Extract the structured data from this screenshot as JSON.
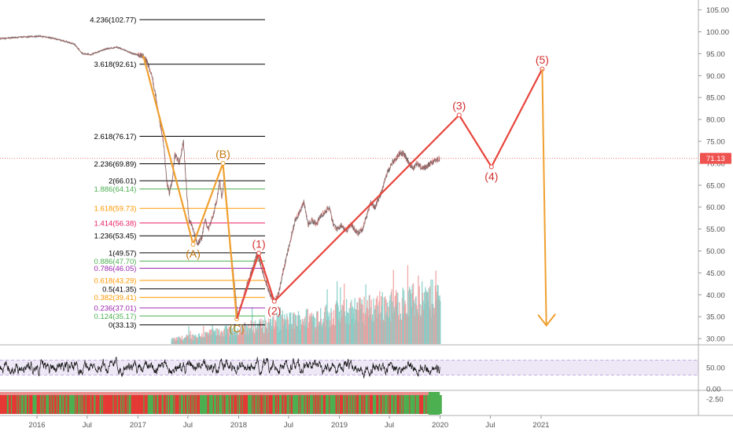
{
  "chart_data": {
    "type": "line",
    "title": "",
    "main_panel": {
      "y_axis": {
        "side": "right",
        "scale": "linear",
        "range": [
          28.5,
          107
        ],
        "ticks": [
          "105.00",
          "100.00",
          "95.00",
          "90.00",
          "85.00",
          "80.00",
          "75.00",
          "70.00",
          "65.00",
          "60.00",
          "55.00",
          "50.00",
          "45.00",
          "40.00",
          "35.00",
          "30.00"
        ]
      },
      "last_price": {
        "value": 71.13,
        "label": "71.13",
        "color": "#ef5350"
      },
      "price_series": {
        "points": [
          [
            "2015-06-01",
            98.2
          ],
          [
            "2015-09-01",
            98.5
          ],
          [
            "2015-12-01",
            98.9
          ],
          [
            "2016-01-15",
            99.0
          ],
          [
            "2016-03-01",
            98.5
          ],
          [
            "2016-04-15",
            97.8
          ],
          [
            "2016-05-15",
            97.2
          ],
          [
            "2016-06-15",
            95.0
          ],
          [
            "2016-07-15",
            94.8
          ],
          [
            "2016-09-01",
            96.0
          ],
          [
            "2016-10-15",
            96.5
          ],
          [
            "2016-11-15",
            95.8
          ],
          [
            "2016-12-15",
            95.0
          ],
          [
            "2017-01-15",
            94.6
          ],
          [
            "2017-02-01",
            93.5
          ],
          [
            "2017-02-20",
            90.0
          ],
          [
            "2017-03-05",
            86.0
          ],
          [
            "2017-03-20",
            80.0
          ],
          [
            "2017-04-05",
            74.0
          ],
          [
            "2017-04-15",
            66.0
          ],
          [
            "2017-04-25",
            63.0
          ],
          [
            "2017-05-05",
            66.0
          ],
          [
            "2017-05-15",
            72.0
          ],
          [
            "2017-06-01",
            70.0
          ],
          [
            "2017-06-15",
            75.0
          ],
          [
            "2017-06-25",
            65.0
          ],
          [
            "2017-07-05",
            57.0
          ],
          [
            "2017-07-15",
            56.0
          ],
          [
            "2017-07-25",
            54.0
          ],
          [
            "2017-08-05",
            51.5
          ],
          [
            "2017-08-20",
            53.0
          ],
          [
            "2017-09-01",
            57.0
          ],
          [
            "2017-09-15",
            55.0
          ],
          [
            "2017-09-30",
            58.0
          ],
          [
            "2017-10-15",
            62.0
          ],
          [
            "2017-10-25",
            66.0
          ],
          [
            "2017-11-01",
            62.0
          ],
          [
            "2017-11-10",
            67.0
          ],
          [
            "2017-11-20",
            60.0
          ],
          [
            "2017-11-30",
            51.0
          ],
          [
            "2017-12-10",
            47.0
          ],
          [
            "2017-12-20",
            40.0
          ],
          [
            "2017-12-28",
            35.0
          ],
          [
            "2018-01-10",
            37.5
          ],
          [
            "2018-01-25",
            41.0
          ],
          [
            "2018-02-10",
            44.0
          ],
          [
            "2018-02-25",
            47.0
          ],
          [
            "2018-03-10",
            49.5
          ],
          [
            "2018-03-25",
            46.0
          ],
          [
            "2018-04-10",
            43.0
          ],
          [
            "2018-04-25",
            40.0
          ],
          [
            "2018-05-10",
            38.5
          ],
          [
            "2018-05-25",
            40.0
          ],
          [
            "2018-06-10",
            45.0
          ],
          [
            "2018-06-25",
            49.0
          ],
          [
            "2018-07-10",
            53.0
          ],
          [
            "2018-07-25",
            57.0
          ],
          [
            "2018-08-10",
            59.0
          ],
          [
            "2018-08-25",
            61.0
          ],
          [
            "2018-09-10",
            56.0
          ],
          [
            "2018-09-25",
            57.0
          ],
          [
            "2018-10-10",
            56.0
          ],
          [
            "2018-10-25",
            58.0
          ],
          [
            "2018-11-10",
            59.0
          ],
          [
            "2018-11-25",
            60.0
          ],
          [
            "2018-12-10",
            56.0
          ],
          [
            "2018-12-25",
            55.0
          ],
          [
            "2019-01-10",
            56.0
          ],
          [
            "2019-01-25",
            54.5
          ],
          [
            "2019-02-10",
            56.0
          ],
          [
            "2019-02-25",
            55.0
          ],
          [
            "2019-03-10",
            54.0
          ],
          [
            "2019-03-25",
            55.0
          ],
          [
            "2019-04-10",
            58.0
          ],
          [
            "2019-04-25",
            61.0
          ],
          [
            "2019-05-10",
            60.0
          ],
          [
            "2019-05-25",
            62.0
          ],
          [
            "2019-06-10",
            65.0
          ],
          [
            "2019-06-25",
            68.0
          ],
          [
            "2019-07-10",
            70.0
          ],
          [
            "2019-07-25",
            71.0
          ],
          [
            "2019-08-10",
            72.5
          ],
          [
            "2019-08-25",
            72.0
          ],
          [
            "2019-09-10",
            70.0
          ],
          [
            "2019-09-25",
            69.0
          ],
          [
            "2019-10-10",
            70.0
          ],
          [
            "2019-10-25",
            69.0
          ],
          [
            "2019-11-10",
            69.0
          ],
          [
            "2019-11-25",
            70.0
          ],
          [
            "2019-12-10",
            70.5
          ],
          [
            "2019-12-31",
            71.13
          ]
        ]
      },
      "fib_levels": [
        {
          "label": "4.236(102.77)",
          "value": 102.77,
          "color": "#000000",
          "line_start": "2017-01-01"
        },
        {
          "label": "3.618(92.61)",
          "value": 92.61,
          "color": "#000000",
          "line_start": "2017-01-01"
        },
        {
          "label": "2.618(76.17)",
          "value": 76.17,
          "color": "#000000",
          "line_start": "2017-01-01"
        },
        {
          "label": "2.236(69.89)",
          "value": 69.89,
          "color": "#000000",
          "line_start": "2017-01-01"
        },
        {
          "label": "2(66.01)",
          "value": 66.01,
          "color": "#000000",
          "line_start": "2017-01-01"
        },
        {
          "label": "1.886(64.14)",
          "value": 64.14,
          "color": "#4caf50",
          "line_start": "2017-01-01"
        },
        {
          "label": "1.618(59.73)",
          "value": 59.73,
          "color": "#ff9800",
          "line_start": "2017-01-01"
        },
        {
          "label": "1.414(56.38)",
          "value": 56.38,
          "color": "#e91e63",
          "line_start": "2017-01-01"
        },
        {
          "label": "1.236(53.45)",
          "value": 53.45,
          "color": "#000000",
          "line_start": "2017-01-01"
        },
        {
          "label": "1(49.57)",
          "value": 49.57,
          "color": "#000000",
          "line_start": "2017-01-01"
        },
        {
          "label": "0.886(47.70)",
          "value": 47.7,
          "color": "#4caf50",
          "line_start": "2017-01-01"
        },
        {
          "label": "0.786(46.05)",
          "value": 46.05,
          "color": "#9c27b0",
          "line_start": "2017-01-01"
        },
        {
          "label": "0.618(43.29)",
          "value": 43.29,
          "color": "#ff9800",
          "line_start": "2017-01-01"
        },
        {
          "label": "0.5(41.35)",
          "value": 41.35,
          "color": "#000000",
          "line_start": "2017-01-01"
        },
        {
          "label": "0.382(39.41)",
          "value": 39.41,
          "color": "#ff9800",
          "line_start": "2017-01-01"
        },
        {
          "label": "0.236(37.01)",
          "value": 37.01,
          "color": "#9c27b0",
          "line_start": "2017-01-01"
        },
        {
          "label": "0.124(35.17)",
          "value": 35.17,
          "color": "#4caf50",
          "line_start": "2017-01-01"
        },
        {
          "label": "0(33.13)",
          "value": 33.13,
          "color": "#000000",
          "line_start": "2017-01-01"
        }
      ],
      "corrective_wave": {
        "color": "#f0a030",
        "points": [
          {
            "date": "2017-01-20",
            "value": 94.6,
            "label": ""
          },
          {
            "date": "2017-07-20",
            "value": 51.5,
            "label": "(A)"
          },
          {
            "date": "2017-11-05",
            "value": 70.0,
            "label": "(B)"
          },
          {
            "date": "2017-12-25",
            "value": 34.5,
            "label": "(C)"
          }
        ]
      },
      "impulse_wave": {
        "color": "#e8453c",
        "points": [
          {
            "date": "2017-12-25",
            "value": 34.5,
            "label": ""
          },
          {
            "date": "2018-03-15",
            "value": 49.5,
            "label": "(1)"
          },
          {
            "date": "2018-05-10",
            "value": 38.5,
            "label": "(2)"
          },
          {
            "date": "2020-03-10",
            "value": 81.0,
            "label": "(3)"
          },
          {
            "date": "2020-07-05",
            "value": 69.2,
            "label": "(4)"
          },
          {
            "date": "2021-01-05",
            "value": 91.5,
            "label": "(5)"
          }
        ]
      },
      "projection_arrow": {
        "color": "#f0a030",
        "from": {
          "date": "2021-01-05",
          "value": 91.5
        },
        "to": {
          "date": "2021-01-20",
          "value": 33.0
        }
      },
      "volume": {
        "positive_color": "#80cbc4",
        "negative_color": "#ef9a9a",
        "shown": true
      }
    },
    "rsi_panel": {
      "y_axis": {
        "ticks": [
          "50.00"
        ]
      },
      "band": {
        "upper": 70,
        "lower": 30,
        "fill": "#ede7f6",
        "line_color": "#b39ddb"
      }
    },
    "bottom_panel": {
      "y_axis": {
        "ticks": [
          "0.00",
          "-2.50"
        ]
      },
      "colors": {
        "positive": "#4caf50",
        "negative": "#e53935"
      }
    },
    "x_axis": {
      "ticks": [
        "2016",
        "Jul",
        "2017",
        "Jul",
        "2018",
        "Jul",
        "2019",
        "Jul",
        "2020",
        "Jul",
        "2021"
      ]
    }
  }
}
